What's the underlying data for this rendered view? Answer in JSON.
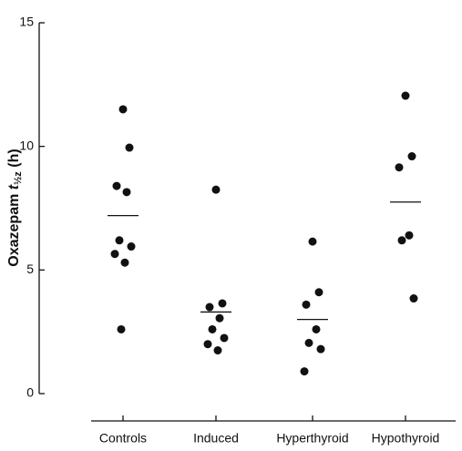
{
  "chart_data": {
    "type": "strip",
    "ylabel": {
      "text": "Oxazepam",
      "symbol": "t",
      "subscript": "½z",
      "unit": "(h)"
    },
    "categories": [
      "Controls",
      "Induced",
      "Hyperthyroid",
      "Hypothyroid"
    ],
    "values": [
      [
        11.5,
        9.95,
        8.4,
        8.15,
        6.2,
        5.95,
        5.65,
        5.3,
        2.6
      ],
      [
        8.25,
        3.65,
        3.5,
        3.05,
        2.6,
        2.25,
        2.0,
        1.75
      ],
      [
        6.15,
        4.1,
        3.6,
        2.6,
        2.05,
        1.8,
        0.9
      ],
      [
        12.05,
        9.6,
        9.15,
        6.4,
        6.2,
        3.85
      ]
    ],
    "means": [
      7.2,
      3.3,
      3.0,
      7.75
    ],
    "color": "#111111",
    "ylim": [
      0,
      15
    ],
    "yticks": [
      0,
      5,
      10,
      15
    ]
  }
}
